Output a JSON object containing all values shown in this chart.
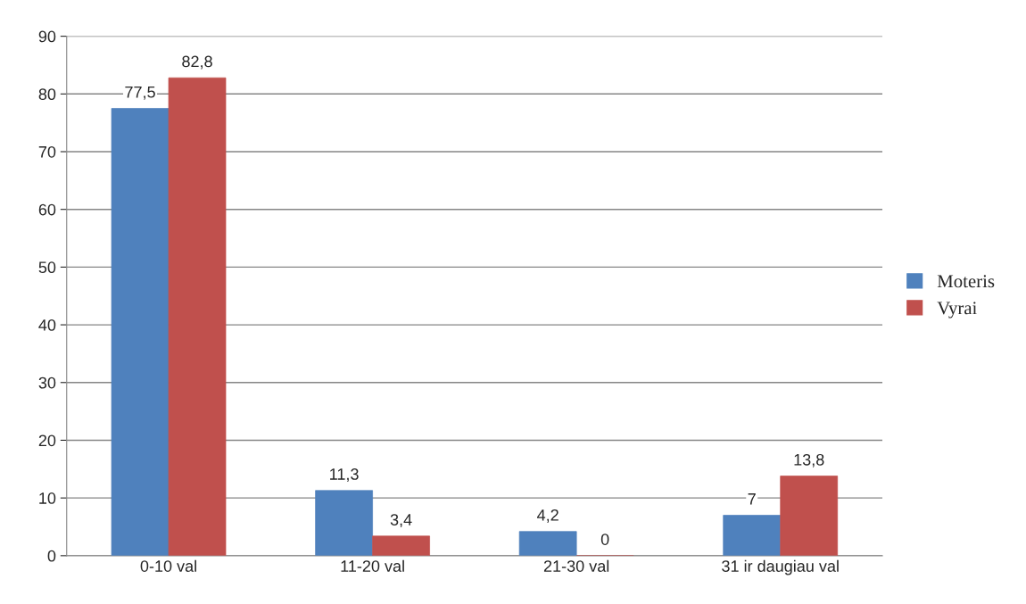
{
  "chart_data": {
    "type": "bar",
    "categories": [
      "0-10 val",
      "11-20 val",
      "21-30 val",
      "31 ir daugiau val"
    ],
    "series": [
      {
        "name": "Moteris",
        "color": "#4f81bd",
        "values": [
          77.5,
          11.3,
          4.2,
          7
        ],
        "value_labels": [
          "77,5",
          "11,3",
          "4,2",
          "7"
        ]
      },
      {
        "name": "Vyrai",
        "color": "#c0504d",
        "values": [
          82.8,
          3.4,
          0,
          13.8
        ],
        "value_labels": [
          "82,8",
          "3,4",
          "0",
          "13,8"
        ]
      }
    ],
    "ylim": [
      0,
      90
    ],
    "yticks": [
      0,
      10,
      20,
      30,
      40,
      50,
      60,
      70,
      80,
      90
    ],
    "grid": "y",
    "legend": "right"
  }
}
